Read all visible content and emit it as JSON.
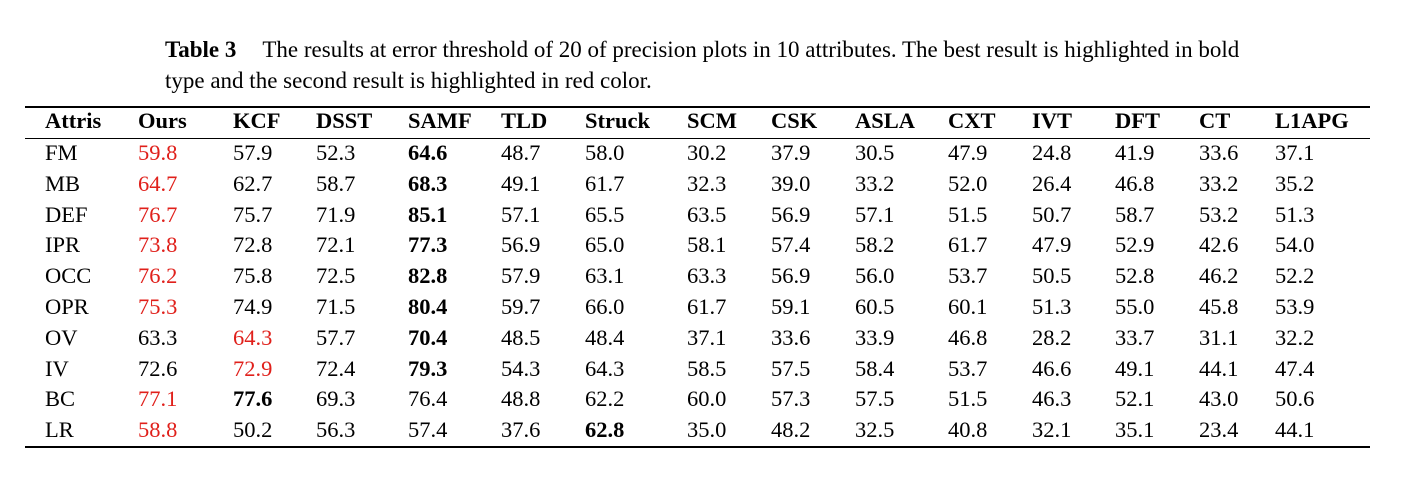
{
  "caption": {
    "label": "Table 3",
    "text": "The results at error threshold of 20 of precision plots in 10 attributes.  The best result is highlighted in bold type and the second result is highlighted in red color."
  },
  "table": {
    "header": [
      "Attris",
      "Ours",
      "KCF",
      "DSST",
      "SAMF",
      "TLD",
      "Struck",
      "SCM",
      "CSK",
      "ASLA",
      "CXT",
      "IVT",
      "DFT",
      "CT",
      "L1APG"
    ],
    "rows": [
      [
        "FM",
        "59.8",
        "57.9",
        "52.3",
        "64.6",
        "48.7",
        "58.0",
        "30.2",
        "37.9",
        "30.5",
        "47.9",
        "24.8",
        "41.9",
        "33.6",
        "37.1"
      ],
      [
        "MB",
        "64.7",
        "62.7",
        "58.7",
        "68.3",
        "49.1",
        "61.7",
        "32.3",
        "39.0",
        "33.2",
        "52.0",
        "26.4",
        "46.8",
        "33.2",
        "35.2"
      ],
      [
        "DEF",
        "76.7",
        "75.7",
        "71.9",
        "85.1",
        "57.1",
        "65.5",
        "63.5",
        "56.9",
        "57.1",
        "51.5",
        "50.7",
        "58.7",
        "53.2",
        "51.3"
      ],
      [
        "IPR",
        "73.8",
        "72.8",
        "72.1",
        "77.3",
        "56.9",
        "65.0",
        "58.1",
        "57.4",
        "58.2",
        "61.7",
        "47.9",
        "52.9",
        "42.6",
        "54.0"
      ],
      [
        "OCC",
        "76.2",
        "75.8",
        "72.5",
        "82.8",
        "57.9",
        "63.1",
        "63.3",
        "56.9",
        "56.0",
        "53.7",
        "50.5",
        "52.8",
        "46.2",
        "52.2"
      ],
      [
        "OPR",
        "75.3",
        "74.9",
        "71.5",
        "80.4",
        "59.7",
        "66.0",
        "61.7",
        "59.1",
        "60.5",
        "60.1",
        "51.3",
        "55.0",
        "45.8",
        "53.9"
      ],
      [
        "OV",
        "63.3",
        "64.3",
        "57.7",
        "70.4",
        "48.5",
        "48.4",
        "37.1",
        "33.6",
        "33.9",
        "46.8",
        "28.2",
        "33.7",
        "31.1",
        "32.2"
      ],
      [
        "IV",
        "72.6",
        "72.9",
        "72.4",
        "79.3",
        "54.3",
        "64.3",
        "58.5",
        "57.5",
        "58.4",
        "53.7",
        "46.6",
        "49.1",
        "44.1",
        "47.4"
      ],
      [
        "BC",
        "77.1",
        "77.6",
        "69.3",
        "76.4",
        "48.8",
        "62.2",
        "60.0",
        "57.3",
        "57.5",
        "51.5",
        "46.3",
        "52.1",
        "43.0",
        "50.6"
      ],
      [
        "LR",
        "58.8",
        "50.2",
        "56.3",
        "57.4",
        "37.6",
        "62.8",
        "35.0",
        "48.2",
        "32.5",
        "40.8",
        "32.1",
        "35.1",
        "23.4",
        "44.1"
      ]
    ],
    "second_color": "#e0201b"
  }
}
